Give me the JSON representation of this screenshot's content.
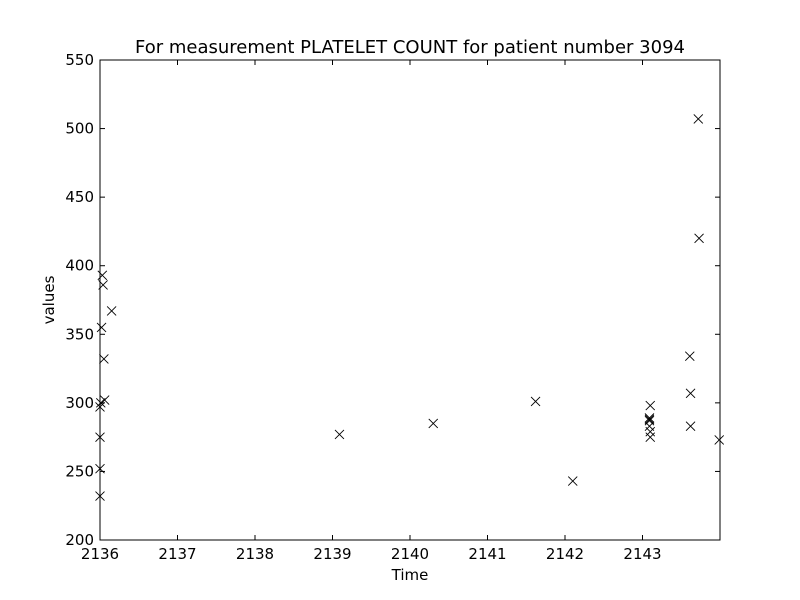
{
  "chart_data": {
    "type": "scatter",
    "title": "For measurement PLATELET COUNT for patient number 3094",
    "xlabel": "Time",
    "ylabel": "values",
    "xlim": [
      2136,
      2144
    ],
    "ylim": [
      200,
      550
    ],
    "x_ticks": [
      2136,
      2137,
      2138,
      2139,
      2140,
      2141,
      2142,
      2143
    ],
    "y_ticks": [
      200,
      250,
      300,
      350,
      400,
      450,
      500,
      550
    ],
    "marker": "x",
    "marker_color": "#000000",
    "grid": false,
    "points": [
      {
        "x": 2136.0,
        "y": 232
      },
      {
        "x": 2136.0,
        "y": 252
      },
      {
        "x": 2136.0,
        "y": 275
      },
      {
        "x": 2136.0,
        "y": 297
      },
      {
        "x": 2136.01,
        "y": 300
      },
      {
        "x": 2136.02,
        "y": 355
      },
      {
        "x": 2136.03,
        "y": 393
      },
      {
        "x": 2136.04,
        "y": 386
      },
      {
        "x": 2136.05,
        "y": 332
      },
      {
        "x": 2136.06,
        "y": 302
      },
      {
        "x": 2136.15,
        "y": 367
      },
      {
        "x": 2139.09,
        "y": 277
      },
      {
        "x": 2140.3,
        "y": 285
      },
      {
        "x": 2141.62,
        "y": 301
      },
      {
        "x": 2142.1,
        "y": 243
      },
      {
        "x": 2143.09,
        "y": 288
      },
      {
        "x": 2143.09,
        "y": 289
      },
      {
        "x": 2143.09,
        "y": 287
      },
      {
        "x": 2143.09,
        "y": 283
      },
      {
        "x": 2143.1,
        "y": 298
      },
      {
        "x": 2143.1,
        "y": 279
      },
      {
        "x": 2143.1,
        "y": 275
      },
      {
        "x": 2143.61,
        "y": 334
      },
      {
        "x": 2143.62,
        "y": 307
      },
      {
        "x": 2143.62,
        "y": 283
      },
      {
        "x": 2143.72,
        "y": 507
      },
      {
        "x": 2143.73,
        "y": 420
      },
      {
        "x": 2143.99,
        "y": 273
      }
    ]
  }
}
